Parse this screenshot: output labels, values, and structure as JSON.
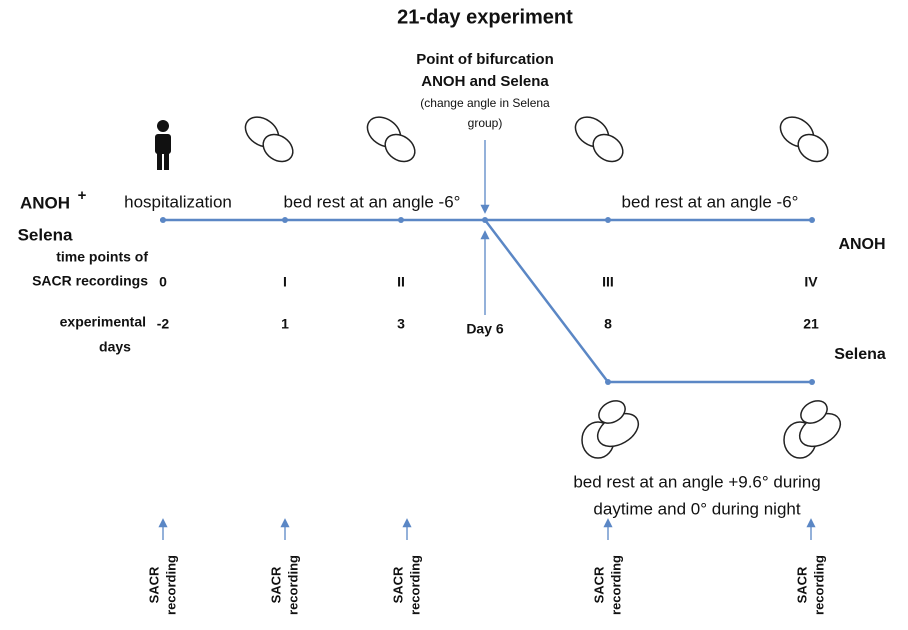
{
  "title": "21-day experiment",
  "bifurcation": {
    "lines": [
      "Point of bifurcation",
      "ANOH and Selena",
      "(change angle in Selena",
      "group)"
    ]
  },
  "left_labels": {
    "anoh": "ANOH",
    "plus": "+",
    "selena": "Selena",
    "time_points": [
      "time points of",
      "SACR recordings"
    ],
    "days": [
      "experimental",
      "days"
    ]
  },
  "phases": [
    "hospitalization",
    "bed rest at an angle -6°",
    "bed rest at an angle -6°"
  ],
  "groups": {
    "anoh": "ANOH",
    "selena": "Selena"
  },
  "time_points": [
    {
      "label": "0",
      "day": "-2"
    },
    {
      "label": "I",
      "day": "1"
    },
    {
      "label": "II",
      "day": "3"
    },
    {
      "label": "III",
      "day": "8"
    },
    {
      "label": "IV",
      "day": "21"
    }
  ],
  "day6": "Day 6",
  "selena_condition": [
    "bed rest at an angle +9.6° during",
    "daytime and 0° during night"
  ],
  "recordings": [
    {
      "lines": [
        "SACR",
        "recording"
      ]
    },
    {
      "lines": [
        "SACR",
        "recording"
      ]
    },
    {
      "lines": [
        "SACR",
        "recording"
      ]
    },
    {
      "lines": [
        "SACR",
        "recording"
      ]
    },
    {
      "lines": [
        "SACR",
        "recording"
      ]
    }
  ]
}
